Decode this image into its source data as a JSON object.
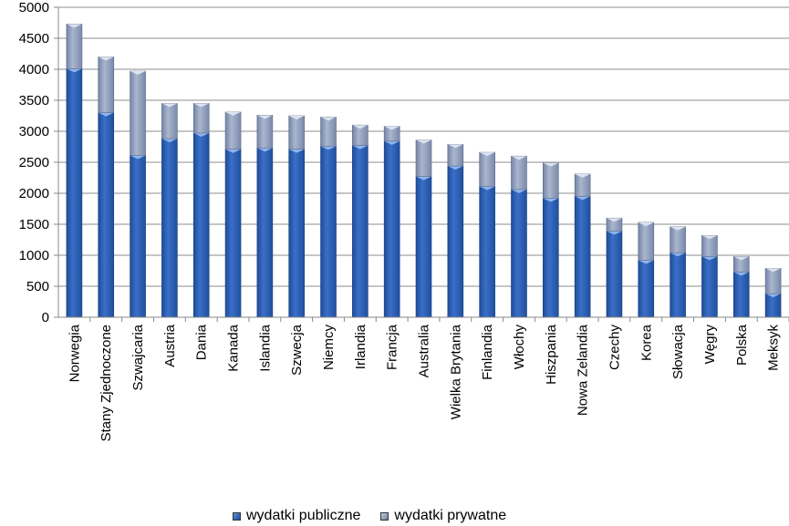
{
  "chart_data": {
    "type": "bar",
    "stacked": true,
    "categories": [
      "Norwegia",
      "Stany Zjednoczone",
      "Szwajcaria",
      "Austria",
      "Dania",
      "Kanada",
      "Islandia",
      "Szwecja",
      "Niemcy",
      "Irlandia",
      "Francja",
      "Australia",
      "Wielka Brytania",
      "Finlandia",
      "Włochy",
      "Hiszpania",
      "Nowa Zelandia",
      "Czechy",
      "Korea",
      "Słowacja",
      "Węgry",
      "Polska",
      "Meksyk"
    ],
    "series": [
      {
        "name": "wydatki publiczne",
        "values": [
          4010,
          3300,
          2610,
          2880,
          2970,
          2710,
          2730,
          2710,
          2760,
          2770,
          2840,
          2270,
          2440,
          2110,
          2060,
          1920,
          1950,
          1390,
          920,
          1040,
          980,
          730,
          380
        ]
      },
      {
        "name": "wydatki prywatne",
        "values": [
          720,
          900,
          1360,
          570,
          480,
          600,
          530,
          540,
          470,
          330,
          240,
          590,
          350,
          550,
          540,
          570,
          360,
          210,
          610,
          420,
          340,
          250,
          410
        ]
      }
    ],
    "ylim": [
      0,
      5000
    ],
    "yticks": [
      0,
      500,
      1000,
      1500,
      2000,
      2500,
      3000,
      3500,
      4000,
      4500,
      5000
    ],
    "grid": true,
    "legend_position": "bottom",
    "colors": {
      "public": "#2b5fb4",
      "public_light": "#5a8ede",
      "private": "#8d9bba",
      "private_light": "#c4cde0"
    }
  }
}
